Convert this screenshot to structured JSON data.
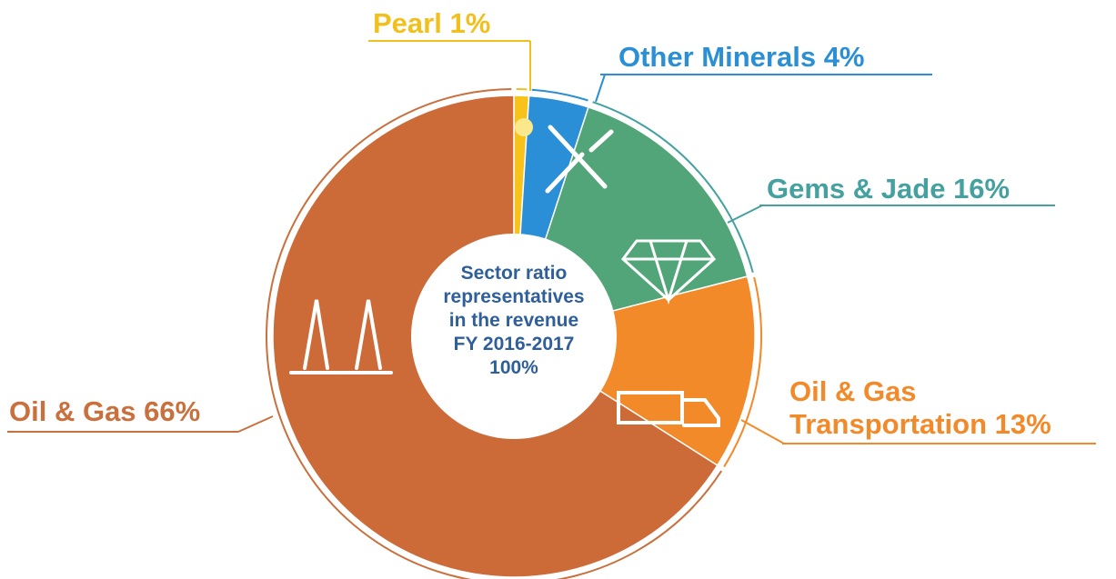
{
  "chart_data": {
    "type": "donut",
    "categories": [
      "Pearl",
      "Other Minerals",
      "Gems & Jade",
      "Oil & Gas Transportation",
      "Oil & Gas"
    ],
    "values": [
      1,
      4,
      16,
      13,
      66
    ],
    "value_labels": [
      "1%",
      "4%",
      "16%",
      "13%",
      "66%"
    ],
    "colors": [
      "#f7c31a",
      "#2a8fd6",
      "#52a578",
      "#f28a2a",
      "#cc6b38"
    ],
    "label_colors": [
      "#f2c01c",
      "#2a8fd4",
      "#45a0a0",
      "#f28a2a",
      "#c9703d"
    ],
    "center_text": [
      "Sector ratio",
      "representatives",
      "in the revenue",
      "FY 2016-2017",
      "100%"
    ]
  }
}
